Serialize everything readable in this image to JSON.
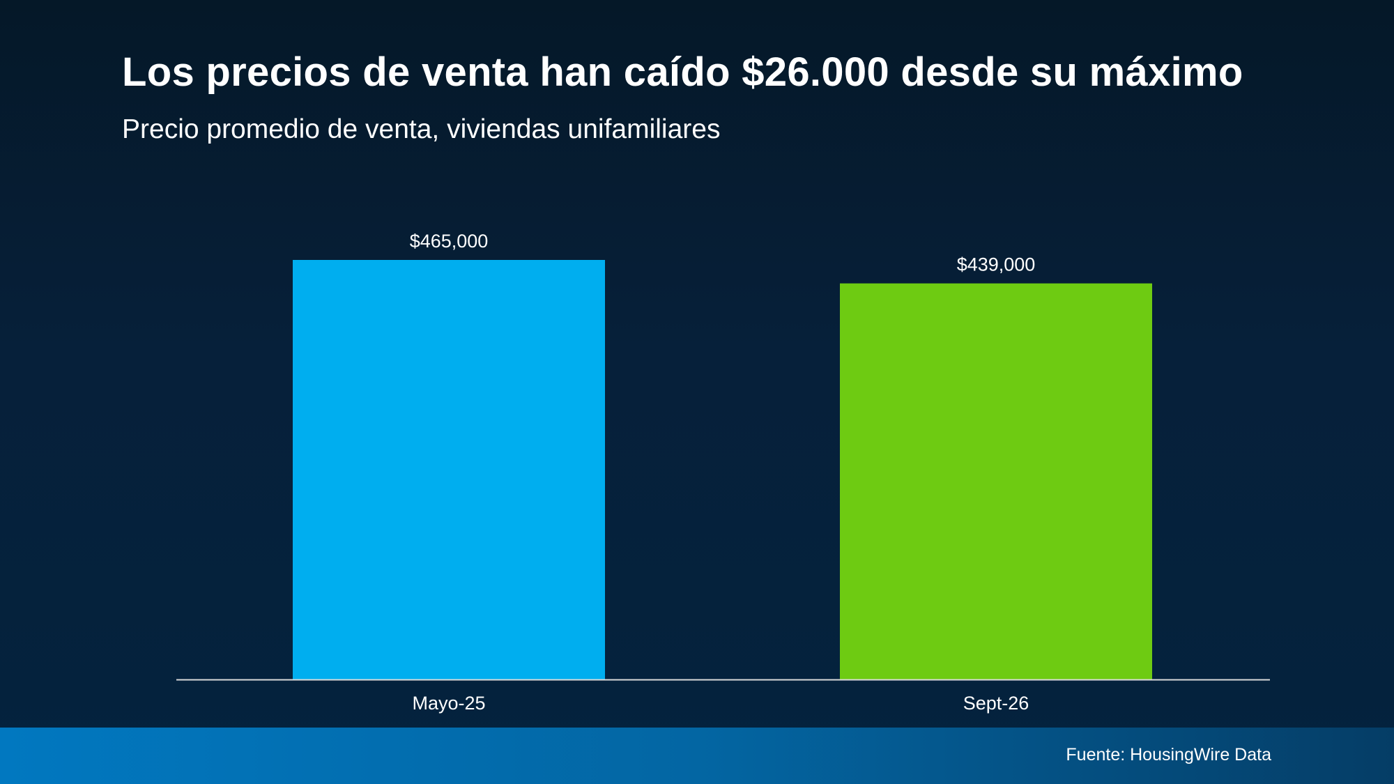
{
  "chart_data": {
    "type": "bar",
    "title": "Los precios de venta han caído $26.000 desde su máximo",
    "subtitle": "Precio promedio de venta, viviendas unifamiliares",
    "categories": [
      "Mayo-25",
      "Sept-26"
    ],
    "values": [
      465000,
      439000
    ],
    "data_labels": [
      "$465,000",
      "$439,000"
    ],
    "colors": [
      "#00aeef",
      "#6ecb12"
    ],
    "xlabel": "",
    "ylabel": "",
    "ylim": [
      0,
      465000
    ],
    "grid": false,
    "legend": "none"
  },
  "footer": {
    "source": "Fuente: HousingWire Data"
  }
}
